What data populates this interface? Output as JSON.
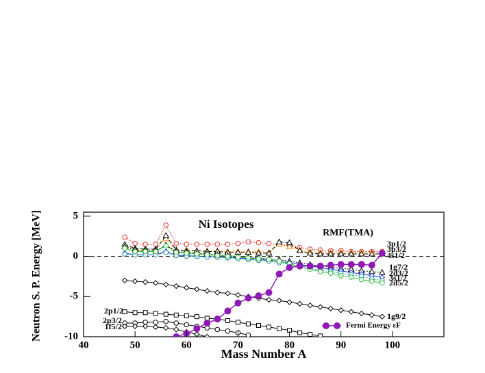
{
  "chart_data": {
    "type": "line",
    "title": "Ni Isotopes",
    "annotation": "RMF(TMA)",
    "x_label": "Mass Number  A",
    "y_label": "Neutron S. P. Energy [MeV]",
    "xlim": [
      40,
      110
    ],
    "ylim": [
      -10,
      5.5
    ],
    "xticks": [
      40,
      50,
      60,
      70,
      80,
      90,
      100
    ],
    "yticks": [
      -10,
      -5,
      0,
      5
    ],
    "legend": "lower right",
    "x": [
      48,
      50,
      52,
      54,
      56,
      58,
      60,
      62,
      64,
      66,
      68,
      70,
      72,
      74,
      76,
      78,
      80,
      82,
      84,
      86,
      88,
      90,
      92,
      94,
      96,
      98
    ],
    "series": [
      {
        "name": "3p1/2",
        "color": "#e8312a",
        "marker": "circle",
        "dash": "dotted",
        "values": [
          2.4,
          1.6,
          1.5,
          1.5,
          3.9,
          1.6,
          1.5,
          1.5,
          1.5,
          1.5,
          1.5,
          1.6,
          1.8,
          1.7,
          1.6,
          1.5,
          1.3,
          1.1,
          0.9,
          0.8,
          0.7,
          0.7,
          0.6,
          0.6,
          0.6,
          0.6
        ]
      },
      {
        "name": "3p3/2",
        "color": "#f28c1e",
        "marker": "triangle",
        "dash": "dotted",
        "values": [
          1.3,
          0.9,
          0.9,
          0.9,
          2.2,
          0.8,
          0.8,
          0.7,
          0.7,
          0.7,
          0.6,
          0.6,
          0.6,
          0.6,
          0.5,
          1.5,
          1.2,
          0.8,
          0.6,
          0.5,
          0.5,
          0.5,
          0.5,
          0.5,
          0.5,
          0.5
        ]
      },
      {
        "name": "4s1/2",
        "color": "#000000",
        "marker": "triangle",
        "dash": "dashed",
        "values": [
          1.5,
          1.0,
          0.9,
          0.9,
          2.6,
          0.8,
          0.7,
          0.7,
          0.6,
          0.6,
          0.5,
          0.5,
          0.5,
          0.4,
          0.4,
          1.8,
          1.7,
          0.7,
          0.4,
          0.3,
          0.3,
          0.3,
          0.3,
          0.3,
          0.3,
          0.3
        ]
      },
      {
        "name": "1g7/2",
        "color": "#000000",
        "marker": "triangle",
        "dash": "dotted",
        "values": [
          1.2,
          0.8,
          0.7,
          0.7,
          1.4,
          0.6,
          0.5,
          0.4,
          0.3,
          0.2,
          0.1,
          0.0,
          -0.1,
          -0.2,
          -0.3,
          -0.4,
          -0.6,
          -0.8,
          -1.0,
          -1.2,
          -1.3,
          -1.5,
          -1.6,
          -1.8,
          -1.9,
          -2.0
        ]
      },
      {
        "name": "2d3/2",
        "color": "#1f2fe0",
        "marker": "diamond",
        "dash": "solid",
        "values": [
          0.4,
          0.2,
          0.2,
          0.2,
          0.6,
          0.1,
          0.1,
          0.0,
          0.0,
          -0.1,
          -0.1,
          -0.2,
          -0.3,
          -0.4,
          -0.5,
          -0.6,
          -0.8,
          -1.0,
          -1.2,
          -1.4,
          -1.6,
          -1.8,
          -2.0,
          -2.2,
          -2.4,
          -2.6
        ]
      },
      {
        "name": "3s1/2",
        "color": "#1a8fa8",
        "marker": "circle",
        "dash": "dotted",
        "values": [
          0.3,
          0.2,
          0.2,
          0.2,
          0.5,
          0.1,
          0.0,
          0.0,
          -0.1,
          -0.1,
          -0.2,
          -0.3,
          -0.4,
          -0.5,
          -0.6,
          -0.8,
          -1.0,
          -1.3,
          -1.5,
          -1.7,
          -1.9,
          -2.1,
          -2.3,
          -2.5,
          -2.8,
          -3.0
        ]
      },
      {
        "name": "2d5/2",
        "color": "#2fc23a",
        "marker": "circle",
        "dash": "solid",
        "values": [
          1.0,
          0.6,
          0.6,
          0.6,
          1.3,
          0.5,
          0.4,
          0.3,
          0.2,
          0.1,
          0.0,
          -0.1,
          -0.2,
          -0.3,
          -0.4,
          -0.6,
          -0.9,
          -1.3,
          -1.6,
          -1.9,
          -2.1,
          -2.4,
          -2.6,
          -2.9,
          -3.1,
          -3.3
        ]
      },
      {
        "name": "1g9/2",
        "color": "#000000",
        "marker": "diamond",
        "dash": "solid",
        "values": [
          -3.0,
          -3.1,
          -3.2,
          -3.3,
          -3.5,
          -3.7,
          -3.9,
          -4.1,
          -4.3,
          -4.5,
          -4.6,
          -4.8,
          -5.0,
          -5.2,
          -5.4,
          -5.5,
          -5.7,
          -5.9,
          -6.1,
          -6.3,
          -6.5,
          -6.7,
          -6.9,
          -7.1,
          -7.3,
          -7.5
        ]
      },
      {
        "name": "2p1/2",
        "color": "#000000",
        "marker": "square",
        "dash": "solid",
        "values": [
          -6.9,
          -7.0,
          -7.0,
          -7.1,
          -7.2,
          -7.3,
          -7.4,
          -7.5,
          -7.7,
          -7.8,
          -8.0,
          -8.2,
          -8.4,
          -8.6,
          -8.8,
          -9.0,
          -9.2,
          -9.5,
          -9.7,
          -9.9,
          null,
          null,
          null,
          null,
          null,
          null
        ]
      },
      {
        "name": "2p3/2",
        "color": "#000000",
        "marker": "circle",
        "dash": "solid",
        "values": [
          -8.3,
          -8.3,
          -8.2,
          -8.2,
          -8.1,
          -8.3,
          -8.5,
          -8.7,
          -8.9,
          -9.1,
          -9.3,
          -9.5,
          -9.8,
          null,
          null,
          null,
          null,
          null,
          null,
          null,
          null,
          null,
          null,
          null,
          null,
          null
        ]
      },
      {
        "name": "1f5/2",
        "color": "#000000",
        "marker": "diamond",
        "dash": "solid",
        "values": [
          -8.7,
          -8.7,
          -8.7,
          -8.8,
          -8.9,
          -9.1,
          -9.4,
          -9.7,
          -10.0,
          null,
          null,
          null,
          null,
          null,
          null,
          null,
          null,
          null,
          null,
          null,
          null,
          null,
          null,
          null,
          null,
          null
        ]
      },
      {
        "name": "Fermi Energy εF",
        "color": "#8e1bb5",
        "marker": "filled-circle",
        "dash": "solid",
        "values": [
          null,
          null,
          null,
          null,
          null,
          -10.0,
          -9.6,
          -9.0,
          -8.3,
          -7.8,
          -6.8,
          -5.8,
          -5.2,
          -4.9,
          -4.5,
          -2.2,
          -1.4,
          -1.2,
          -1.2,
          -1.2,
          -1.1,
          -1.0,
          -1.0,
          -1.0,
          -1.1,
          0.4
        ]
      }
    ]
  }
}
